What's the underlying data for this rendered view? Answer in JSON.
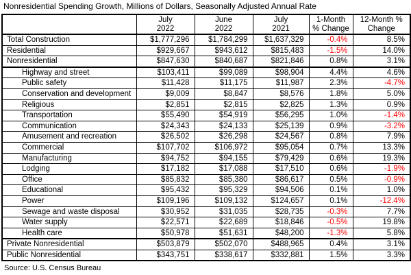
{
  "chart_data": {
    "type": "table",
    "title": "Nonresidential Spending Growth, Millions of Dollars, Seasonally Adjusted Annual Rate",
    "source": "Source: U.S. Census Bureau",
    "units": "Millions of Dollars",
    "columns": [
      {
        "line1": "July",
        "line2": "2022"
      },
      {
        "line1": "June",
        "line2": "2022"
      },
      {
        "line1": "July",
        "line2": "2021"
      },
      {
        "line1": "1-Month",
        "line2": "% Change"
      },
      {
        "line1": "12-Month %",
        "line2": "Change"
      }
    ],
    "rows": [
      {
        "label": "Total Construction",
        "indent": false,
        "values": [
          "$1,777,296",
          "$1,784,299",
          "$1,637,329",
          "-0.4%",
          "8.5%"
        ],
        "thick_below": false
      },
      {
        "label": "Residential",
        "indent": false,
        "values": [
          "$929,667",
          "$943,612",
          "$815,483",
          "-1.5%",
          "14.0%"
        ],
        "thick_below": false
      },
      {
        "label": "Nonresidential",
        "indent": false,
        "values": [
          "$847,630",
          "$840,687",
          "$821,846",
          "0.8%",
          "3.1%"
        ],
        "thick_below": true
      },
      {
        "label": "Highway and street",
        "indent": true,
        "values": [
          "$103,411",
          "$99,089",
          "$98,904",
          "4.4%",
          "4.6%"
        ],
        "thick_below": false
      },
      {
        "label": "Public safety",
        "indent": true,
        "values": [
          "$11,428",
          "$11,175",
          "$11,987",
          "2.3%",
          "-4.7%"
        ],
        "thick_below": false
      },
      {
        "label": "Conservation and development",
        "indent": true,
        "values": [
          "$9,009",
          "$8,847",
          "$8,576",
          "1.8%",
          "5.0%"
        ],
        "thick_below": false
      },
      {
        "label": "Religious",
        "indent": true,
        "values": [
          "$2,851",
          "$2,815",
          "$2,825",
          "1.3%",
          "0.9%"
        ],
        "thick_below": false
      },
      {
        "label": "Transportation",
        "indent": true,
        "values": [
          "$55,490",
          "$54,919",
          "$56,295",
          "1.0%",
          "-1.4%"
        ],
        "thick_below": false
      },
      {
        "label": "Communication",
        "indent": true,
        "values": [
          "$24,343",
          "$24,133",
          "$25,139",
          "0.9%",
          "-3.2%"
        ],
        "thick_below": false
      },
      {
        "label": "Amusement and recreation",
        "indent": true,
        "values": [
          "$26,502",
          "$26,298",
          "$24,567",
          "0.8%",
          "7.9%"
        ],
        "thick_below": false
      },
      {
        "label": "Commercial",
        "indent": true,
        "values": [
          "$107,702",
          "$106,972",
          "$95,054",
          "0.7%",
          "13.3%"
        ],
        "thick_below": false
      },
      {
        "label": "Manufacturing",
        "indent": true,
        "values": [
          "$94,752",
          "$94,155",
          "$79,429",
          "0.6%",
          "19.3%"
        ],
        "thick_below": false
      },
      {
        "label": "Lodging",
        "indent": true,
        "values": [
          "$17,182",
          "$17,088",
          "$17,510",
          "0.6%",
          "-1.9%"
        ],
        "thick_below": false
      },
      {
        "label": "Office",
        "indent": true,
        "values": [
          "$85,832",
          "$85,380",
          "$86,617",
          "0.5%",
          "-0.9%"
        ],
        "thick_below": false
      },
      {
        "label": "Educational",
        "indent": true,
        "values": [
          "$95,432",
          "$95,329",
          "$94,506",
          "0.1%",
          "1.0%"
        ],
        "thick_below": false
      },
      {
        "label": "Power",
        "indent": true,
        "values": [
          "$109,196",
          "$109,132",
          "$124,657",
          "0.1%",
          "-12.4%"
        ],
        "thick_below": false
      },
      {
        "label": "Sewage and waste disposal",
        "indent": true,
        "values": [
          "$30,952",
          "$31,035",
          "$28,735",
          "-0.3%",
          "7.7%"
        ],
        "thick_below": false
      },
      {
        "label": "Water supply",
        "indent": true,
        "values": [
          "$22,571",
          "$22,689",
          "$18,846",
          "-0.5%",
          "19.8%"
        ],
        "thick_below": false
      },
      {
        "label": "Health care",
        "indent": true,
        "values": [
          "$50,978",
          "$51,631",
          "$48,200",
          "-1.3%",
          "5.8%"
        ],
        "thick_below": true
      },
      {
        "label": "Private Nonresidential",
        "indent": false,
        "values": [
          "$503,879",
          "$502,070",
          "$488,965",
          "0.4%",
          "3.1%"
        ],
        "thick_below": false
      },
      {
        "label": "Public Nonresidential",
        "indent": false,
        "values": [
          "$343,751",
          "$338,617",
          "$332,881",
          "1.5%",
          "3.3%"
        ],
        "thick_below": false
      }
    ]
  },
  "colors": {
    "negative_text": "#FF0000",
    "text": "#000000",
    "border": "#000000",
    "background": "#FFFFFF"
  }
}
